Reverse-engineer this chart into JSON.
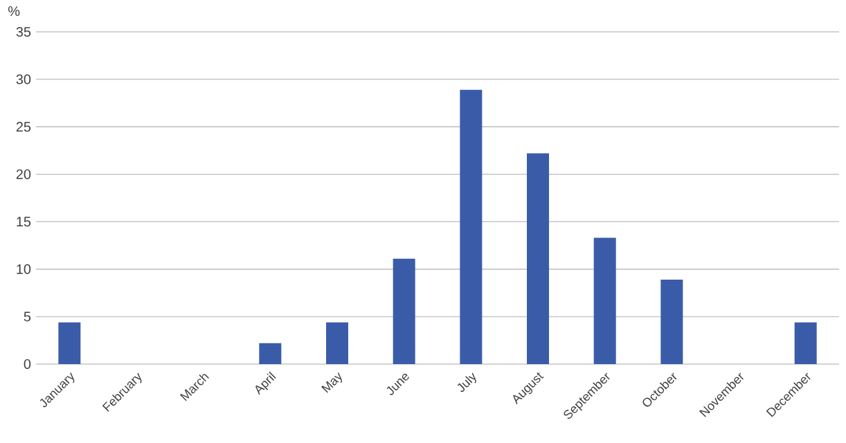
{
  "chart_data": {
    "type": "bar",
    "ylabel": "%",
    "categories": [
      "January",
      "February",
      "March",
      "April",
      "May",
      "June",
      "July",
      "August",
      "September",
      "October",
      "November",
      "December"
    ],
    "values": [
      4.4,
      0,
      0,
      2.2,
      4.4,
      11.1,
      28.9,
      22.2,
      13.3,
      8.9,
      0,
      4.4
    ],
    "color": "#3a5ca8",
    "ylim": [
      0,
      35
    ],
    "yticks": [
      0,
      5,
      10,
      15,
      20,
      25,
      30,
      35
    ],
    "grid": "y"
  }
}
